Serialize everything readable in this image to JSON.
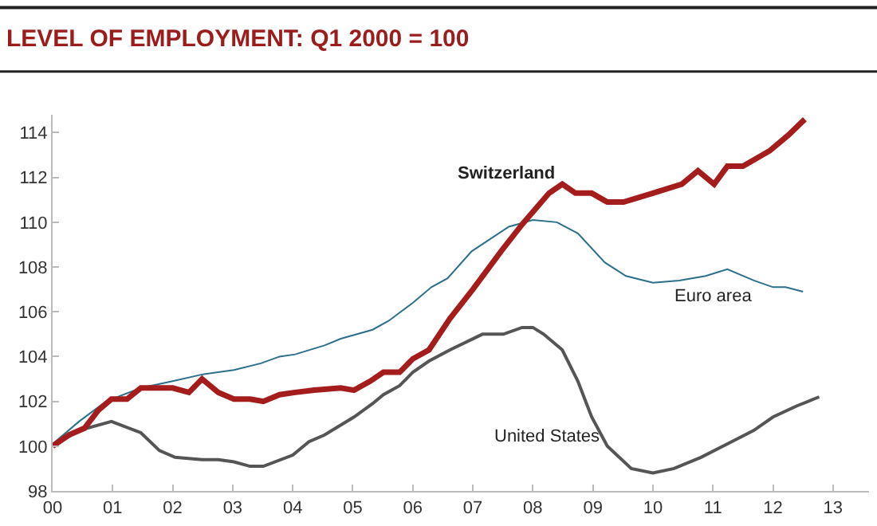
{
  "chart_data": {
    "type": "line",
    "title": "LEVEL OF EMPLOYMENT: Q1 2000 = 100",
    "xlim": [
      0,
      13.6
    ],
    "xticks": [
      {
        "value": 0,
        "label": "00"
      },
      {
        "value": 1,
        "label": "01"
      },
      {
        "value": 2,
        "label": "02"
      },
      {
        "value": 3,
        "label": "03"
      },
      {
        "value": 4,
        "label": "04"
      },
      {
        "value": 5,
        "label": "05"
      },
      {
        "value": 6,
        "label": "06"
      },
      {
        "value": 7,
        "label": "07"
      },
      {
        "value": 8,
        "label": "08"
      },
      {
        "value": 9,
        "label": "09"
      },
      {
        "value": 10,
        "label": "10"
      },
      {
        "value": 11,
        "label": "11"
      },
      {
        "value": 12,
        "label": "12"
      },
      {
        "value": 13,
        "label": "13"
      }
    ],
    "ylim": [
      98,
      114.8
    ],
    "yticks": [
      98,
      100,
      102,
      104,
      106,
      108,
      110,
      112,
      114
    ],
    "grid": false,
    "legend": false,
    "marker": "none",
    "line_style": "solid",
    "series": [
      {
        "name": "Euro area",
        "color": "#2b6f8a",
        "x": [
          0,
          0.44,
          0.89,
          1.47,
          2.0,
          2.49,
          3.02,
          3.47,
          3.78,
          4.04,
          4.53,
          4.8,
          5.33,
          5.6,
          6.0,
          6.31,
          6.58,
          6.98,
          7.6,
          8.0,
          8.4,
          8.75,
          9.2,
          9.55,
          10.0,
          10.44,
          10.88,
          11.24,
          11.68,
          12.0,
          12.21,
          12.5
        ],
        "values": [
          100.1,
          101.1,
          102.0,
          102.6,
          102.9,
          103.2,
          103.4,
          103.7,
          104.0,
          104.1,
          104.5,
          104.8,
          105.2,
          105.6,
          106.4,
          107.1,
          107.5,
          108.7,
          109.8,
          110.1,
          110.0,
          109.5,
          108.2,
          107.6,
          107.3,
          107.4,
          107.6,
          107.9,
          107.4,
          107.1,
          107.1,
          106.9
        ]
      },
      {
        "name": "United States",
        "color": "#555555",
        "x": [
          0,
          0.44,
          0.98,
          1.47,
          1.78,
          2.04,
          2.49,
          2.76,
          3.02,
          3.29,
          3.51,
          4.0,
          4.27,
          4.53,
          5.02,
          5.33,
          5.51,
          5.78,
          6.0,
          6.27,
          6.62,
          7.16,
          7.51,
          7.82,
          8.0,
          8.18,
          8.49,
          8.75,
          8.98,
          9.24,
          9.64,
          10.0,
          10.35,
          10.8,
          11.24,
          11.68,
          12.0,
          12.4,
          12.77
        ],
        "values": [
          100.0,
          100.7,
          101.1,
          100.6,
          99.8,
          99.5,
          99.4,
          99.4,
          99.3,
          99.1,
          99.1,
          99.6,
          100.2,
          100.5,
          101.3,
          101.9,
          102.3,
          102.7,
          103.3,
          103.8,
          104.3,
          105.0,
          105.0,
          105.3,
          105.3,
          105.0,
          104.3,
          102.9,
          101.3,
          100.0,
          99.0,
          98.8,
          99.0,
          99.5,
          100.1,
          100.7,
          101.3,
          101.8,
          102.2
        ]
      },
      {
        "name": "Switzerland",
        "color": "#a51c1c",
        "x": [
          0,
          0.27,
          0.53,
          0.76,
          0.98,
          1.24,
          1.47,
          1.78,
          2.0,
          2.27,
          2.49,
          2.76,
          3.02,
          3.29,
          3.51,
          3.78,
          4.04,
          4.36,
          4.8,
          5.02,
          5.29,
          5.51,
          5.78,
          6.0,
          6.27,
          6.62,
          7.0,
          7.47,
          7.82,
          8.27,
          8.49,
          8.71,
          8.98,
          9.24,
          9.51,
          10.0,
          10.48,
          10.75,
          11.02,
          11.24,
          11.5,
          11.95,
          12.26,
          12.53
        ],
        "values": [
          100.0,
          100.5,
          100.8,
          101.6,
          102.1,
          102.1,
          102.6,
          102.6,
          102.6,
          102.4,
          103.0,
          102.4,
          102.1,
          102.1,
          102.0,
          102.3,
          102.4,
          102.5,
          102.6,
          102.5,
          102.9,
          103.3,
          103.3,
          103.9,
          104.3,
          105.7,
          107.0,
          108.7,
          109.9,
          111.3,
          111.7,
          111.3,
          111.3,
          110.9,
          110.9,
          111.3,
          111.7,
          112.3,
          111.7,
          112.5,
          112.5,
          113.2,
          113.9,
          114.6
        ]
      }
    ]
  }
}
